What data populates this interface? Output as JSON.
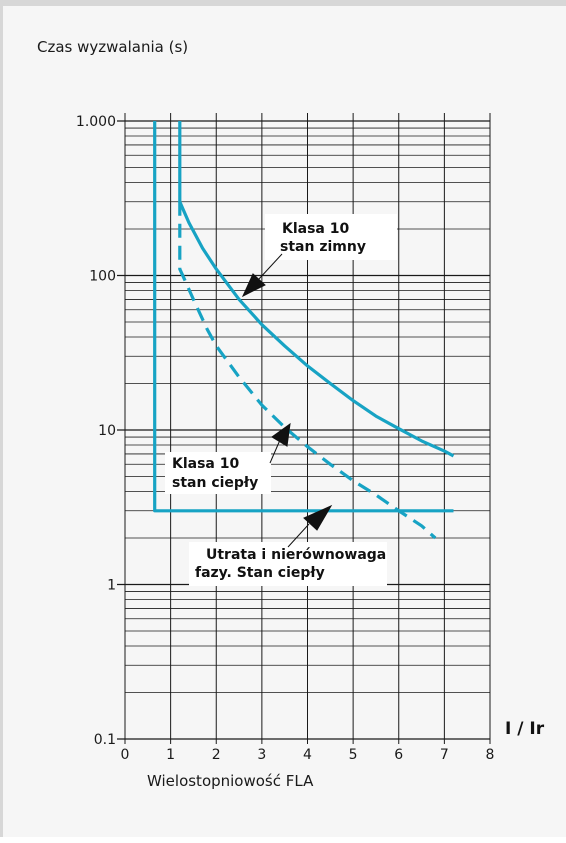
{
  "chart_data": {
    "type": "line",
    "title": "",
    "ylabel": "Czas wyzwalania (s)",
    "xlabel": "Wielostopniowość FLA",
    "x_unit_label": "I / Ir",
    "yscale": "log",
    "ylim": [
      0.1,
      1000
    ],
    "xlim": [
      0,
      8
    ],
    "y_tick_labels": [
      "1.000",
      "100",
      "10",
      "1",
      "0.1"
    ],
    "y_tick_values": [
      1000,
      100,
      10,
      1,
      0.1
    ],
    "x_tick_labels": [
      "0",
      "1",
      "2",
      "3",
      "4",
      "5",
      "6",
      "7",
      "8"
    ],
    "x_tick_values": [
      0,
      1,
      2,
      3,
      4,
      5,
      6,
      7,
      8
    ],
    "grid": true,
    "colors": {
      "curve": "#17a3c4",
      "grid": "#1a1a1a"
    },
    "series": [
      {
        "style": "solid",
        "x": [
          1.2,
          1.2,
          1.4,
          1.7,
          2.0,
          2.5,
          3.0,
          3.5,
          4.0,
          4.5,
          5.0,
          5.5,
          6.0,
          6.5,
          7.0,
          7.2
        ],
        "y": [
          1000,
          300,
          220,
          150,
          110,
          70,
          48,
          35,
          26,
          20,
          15.5,
          12.3,
          10.2,
          8.5,
          7.3,
          6.8
        ]
      },
      {
        "style": "dashed",
        "x": [
          1.2,
          1.2,
          1.3,
          1.5,
          1.8,
          2.0,
          2.5,
          3.0,
          3.5,
          4.0,
          4.5,
          5.0,
          5.5,
          6.0,
          6.5,
          6.8
        ],
        "y": [
          300,
          110,
          95,
          70,
          45,
          35,
          22,
          14.5,
          10.4,
          7.8,
          6.0,
          4.7,
          3.8,
          3.0,
          2.4,
          2.0
        ]
      },
      {
        "style": "solid",
        "x": [
          0.65,
          0.65,
          7.2
        ],
        "y": [
          1000,
          3,
          3
        ]
      }
    ],
    "annotations": [
      {
        "lines": [
          "Klasa 10",
          "stan zimny"
        ]
      },
      {
        "lines": [
          "Klasa 10",
          "stan ciepły"
        ]
      },
      {
        "lines": [
          "Utrata i nierównowaga",
          "fazy. Stan ciepły"
        ]
      }
    ]
  }
}
